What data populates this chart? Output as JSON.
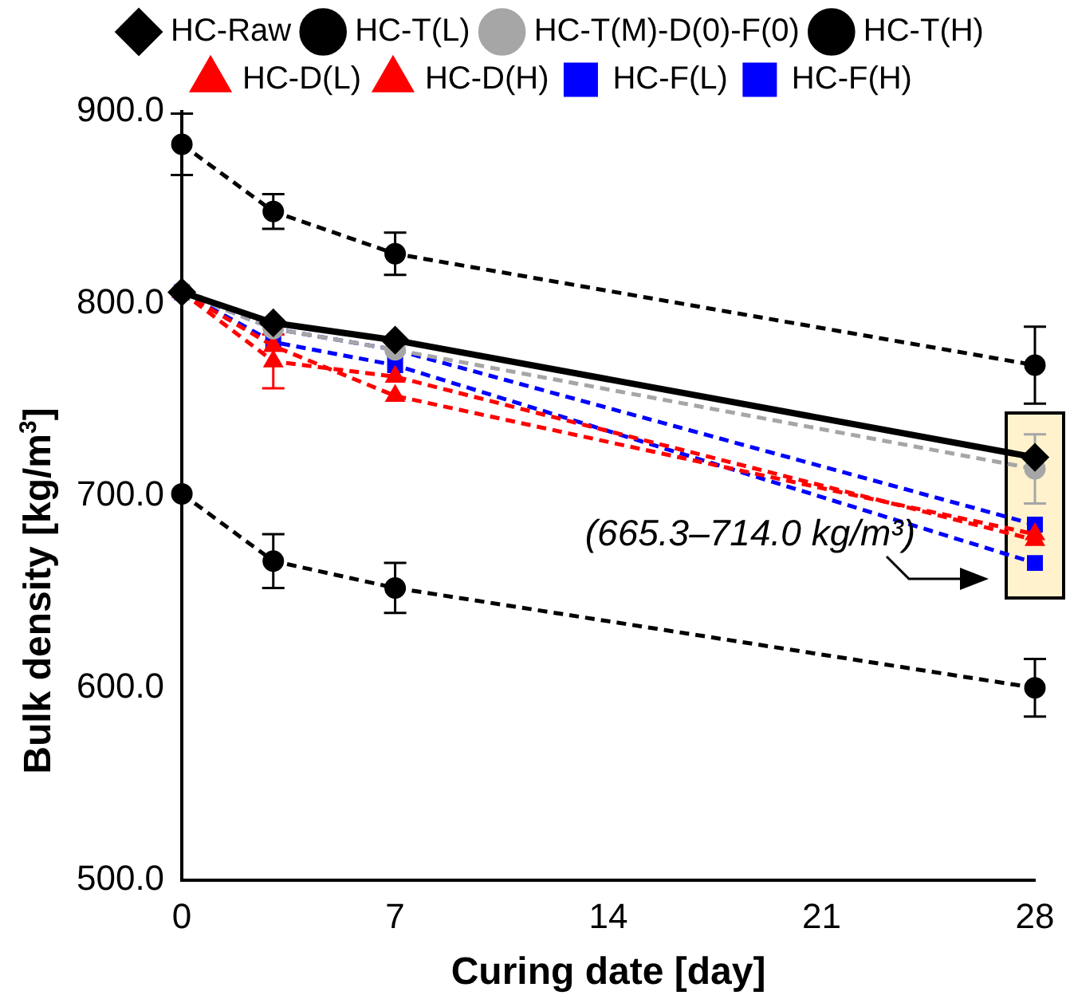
{
  "chart_data": {
    "type": "line",
    "xlabel": "Curing date [day]",
    "ylabel": "Bulk density [kg/m$^{3}$]",
    "x": [
      0,
      3,
      7,
      28
    ],
    "series": [
      {
        "name": "HC-Raw",
        "color": "#000000",
        "marker": "diamond",
        "line_style": "solid",
        "values": [
          806,
          790,
          781,
          720
        ]
      },
      {
        "name": "HC-T(L)",
        "color": "#000000",
        "marker": "circle",
        "line_style": "dashed",
        "values": [
          701,
          666,
          652,
          600
        ],
        "errors": [
          null,
          14,
          13,
          15
        ]
      },
      {
        "name": "HC-T(M)-D(0)-F(0)",
        "color": "#a6a6a6",
        "marker": "circle",
        "line_style": "dashed",
        "values": [
          806,
          787,
          776,
          714
        ],
        "errors": [
          null,
          null,
          null,
          18
        ]
      },
      {
        "name": "HC-T(H)",
        "color": "#000000",
        "marker": "circle",
        "line_style": "dashed",
        "values": [
          883,
          848,
          826,
          768
        ],
        "errors": [
          16,
          9,
          11,
          20
        ]
      },
      {
        "name": "HC-D(L)",
        "color": "#ff0000",
        "marker": "triangle",
        "line_style": "dashed",
        "values": [
          806,
          778,
          752,
          680
        ]
      },
      {
        "name": "HC-D(H)",
        "color": "#ff0000",
        "marker": "triangle",
        "line_style": "dashed",
        "values": [
          806,
          770,
          762,
          677
        ],
        "errors": [
          null,
          14,
          null,
          null
        ]
      },
      {
        "name": "HC-F(L)",
        "color": "#0000ff",
        "marker": "square",
        "line_style": "dashed",
        "values": [
          806,
          787,
          776,
          685
        ]
      },
      {
        "name": "HC-F(H)",
        "color": "#0000ff",
        "marker": "square",
        "line_style": "dashed",
        "values": [
          806,
          780,
          768,
          665
        ]
      }
    ],
    "xlim": [
      0,
      28
    ],
    "xticks": [
      0,
      7,
      14,
      21,
      28
    ],
    "ylim": [
      500,
      900
    ],
    "yticks": [
      {
        "value": 500,
        "label": "500.0"
      },
      {
        "value": 600,
        "label": "600.0"
      },
      {
        "value": 700,
        "label": "700.0"
      },
      {
        "value": 800,
        "label": "800.0"
      },
      {
        "value": 900,
        "label": "900.0"
      }
    ],
    "annotations": [
      "(665.3–714.0 kg/m³)"
    ],
    "legend": "top",
    "grid": false
  }
}
